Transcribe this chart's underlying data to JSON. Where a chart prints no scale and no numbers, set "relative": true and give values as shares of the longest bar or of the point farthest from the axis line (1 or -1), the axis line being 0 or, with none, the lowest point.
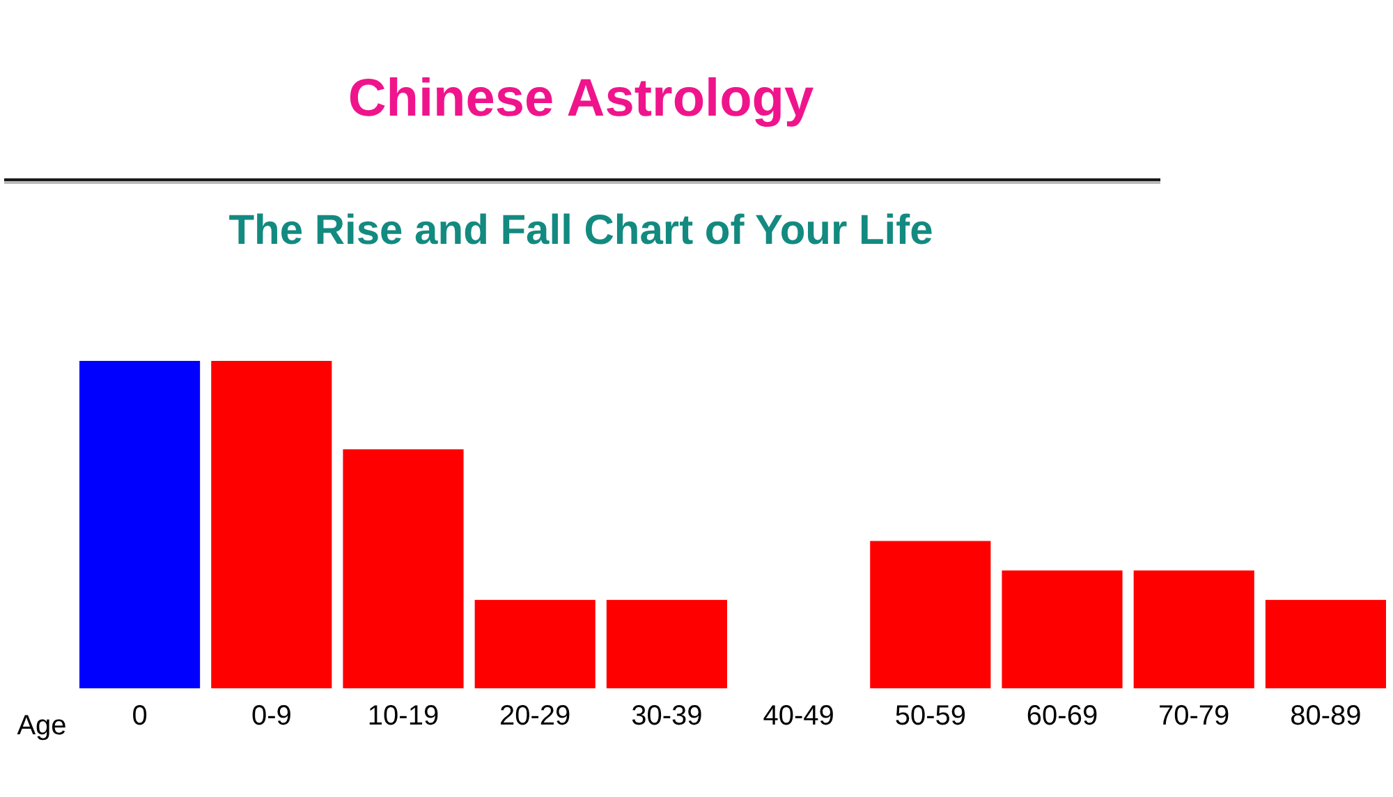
{
  "chart_data": {
    "type": "bar",
    "title": "Chinese Astrology",
    "subtitle": "The Rise and Fall Chart of Your Life",
    "xlabel": "Age",
    "categories": [
      "0",
      "0-9",
      "10-19",
      "20-29",
      "30-39",
      "40-49",
      "50-59",
      "60-69",
      "70-79",
      "80-89"
    ],
    "values": [
      1,
      1,
      0.73,
      0.27,
      0.27,
      0,
      0.45,
      0.36,
      0.36,
      0.27
    ],
    "colors": [
      "#0000ff",
      "#ff0000",
      "#ff0000",
      "#ff0000",
      "#ff0000",
      "#ff0000",
      "#ff0000",
      "#ff0000",
      "#ff0000",
      "#ff0000"
    ],
    "relative": true
  }
}
